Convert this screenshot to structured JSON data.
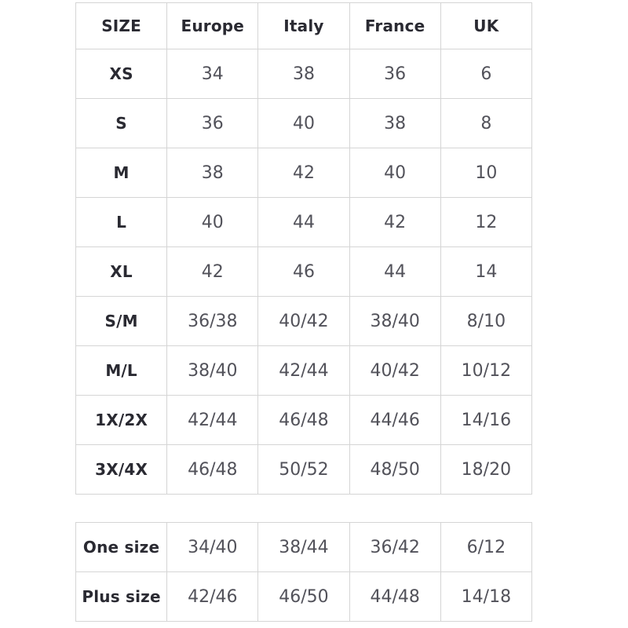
{
  "colors": {
    "background": "#ffffff",
    "border": "#d5d5d5",
    "header_text": "#2a2a32",
    "value_text": "#52525a"
  },
  "size_table": {
    "headers": [
      "SIZE",
      "Europe",
      "Italy",
      "France",
      "UK"
    ],
    "rows": [
      {
        "label": "XS",
        "values": [
          "34",
          "38",
          "36",
          "6"
        ]
      },
      {
        "label": "S",
        "values": [
          "36",
          "40",
          "38",
          "8"
        ]
      },
      {
        "label": "M",
        "values": [
          "38",
          "42",
          "40",
          "10"
        ]
      },
      {
        "label": "L",
        "values": [
          "40",
          "44",
          "42",
          "12"
        ]
      },
      {
        "label": "XL",
        "values": [
          "42",
          "46",
          "44",
          "14"
        ]
      },
      {
        "label": "S/M",
        "values": [
          "36/38",
          "40/42",
          "38/40",
          "8/10"
        ]
      },
      {
        "label": "M/L",
        "values": [
          "38/40",
          "42/44",
          "40/42",
          "10/12"
        ]
      },
      {
        "label": "1X/2X",
        "values": [
          "42/44",
          "46/48",
          "44/46",
          "14/16"
        ]
      },
      {
        "label": "3X/4X",
        "values": [
          "46/48",
          "50/52",
          "48/50",
          "18/20"
        ]
      }
    ]
  },
  "special_size_table": {
    "rows": [
      {
        "label": "One size",
        "values": [
          "34/40",
          "38/44",
          "36/42",
          "6/12"
        ]
      },
      {
        "label": "Plus size",
        "values": [
          "42/46",
          "46/50",
          "44/48",
          "14/18"
        ]
      }
    ]
  }
}
